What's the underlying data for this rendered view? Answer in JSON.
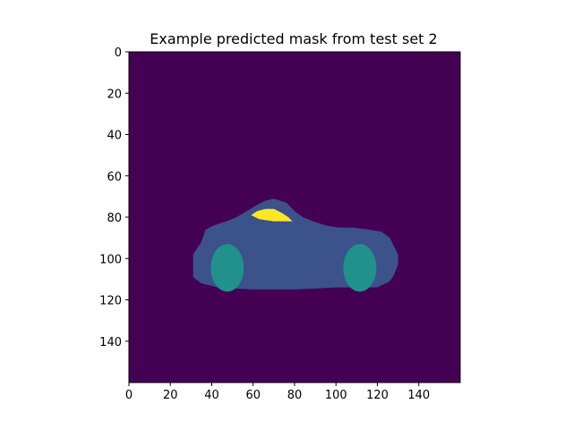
{
  "chart_data": {
    "type": "heatmap",
    "title": "Example predicted mask from test set 2",
    "xlim": [
      0,
      160
    ],
    "ylim": [
      160,
      0
    ],
    "x_ticks": [
      "0",
      "20",
      "40",
      "60",
      "80",
      "100",
      "120",
      "140"
    ],
    "y_ticks": [
      "0",
      "20",
      "40",
      "60",
      "80",
      "100",
      "120",
      "140"
    ],
    "colormap": "viridis",
    "classes": [
      {
        "id": 0,
        "color": "#440154"
      },
      {
        "id": 1,
        "color": "#3b528b"
      },
      {
        "id": 2,
        "color": "#21918c"
      },
      {
        "id": 3,
        "color": "#fde725"
      }
    ],
    "regions": [
      {
        "class": 1,
        "shape": "polygon",
        "points": [
          [
            31,
            109
          ],
          [
            31,
            98
          ],
          [
            35,
            92
          ],
          [
            37,
            86
          ],
          [
            41,
            84
          ],
          [
            47,
            82
          ],
          [
            52,
            80
          ],
          [
            57,
            77
          ],
          [
            62,
            74
          ],
          [
            66,
            72
          ],
          [
            70,
            71
          ],
          [
            76,
            73
          ],
          [
            80,
            77
          ],
          [
            84,
            80
          ],
          [
            89,
            82
          ],
          [
            95,
            84
          ],
          [
            101,
            85
          ],
          [
            108,
            85
          ],
          [
            116,
            86
          ],
          [
            122,
            87
          ],
          [
            126,
            90
          ],
          [
            128,
            94
          ],
          [
            130,
            98
          ],
          [
            130,
            103
          ],
          [
            128,
            108
          ],
          [
            126,
            111
          ],
          [
            120,
            114
          ],
          [
            100,
            114
          ],
          [
            80,
            115
          ],
          [
            60,
            115
          ],
          [
            43,
            114
          ],
          [
            35,
            112
          ]
        ]
      },
      {
        "class": 2,
        "shape": "ellipse",
        "cx": 47.5,
        "cy": 104.5,
        "rx": 8,
        "ry": 11.5
      },
      {
        "class": 2,
        "shape": "ellipse",
        "cx": 111.5,
        "cy": 104.5,
        "rx": 8,
        "ry": 11.5
      },
      {
        "class": 3,
        "shape": "polygon",
        "points": [
          [
            59,
            79
          ],
          [
            62,
            77
          ],
          [
            66,
            76
          ],
          [
            70,
            76
          ],
          [
            74,
            78
          ],
          [
            77,
            80
          ],
          [
            79,
            82
          ],
          [
            70,
            82
          ],
          [
            63,
            81
          ]
        ]
      }
    ]
  }
}
